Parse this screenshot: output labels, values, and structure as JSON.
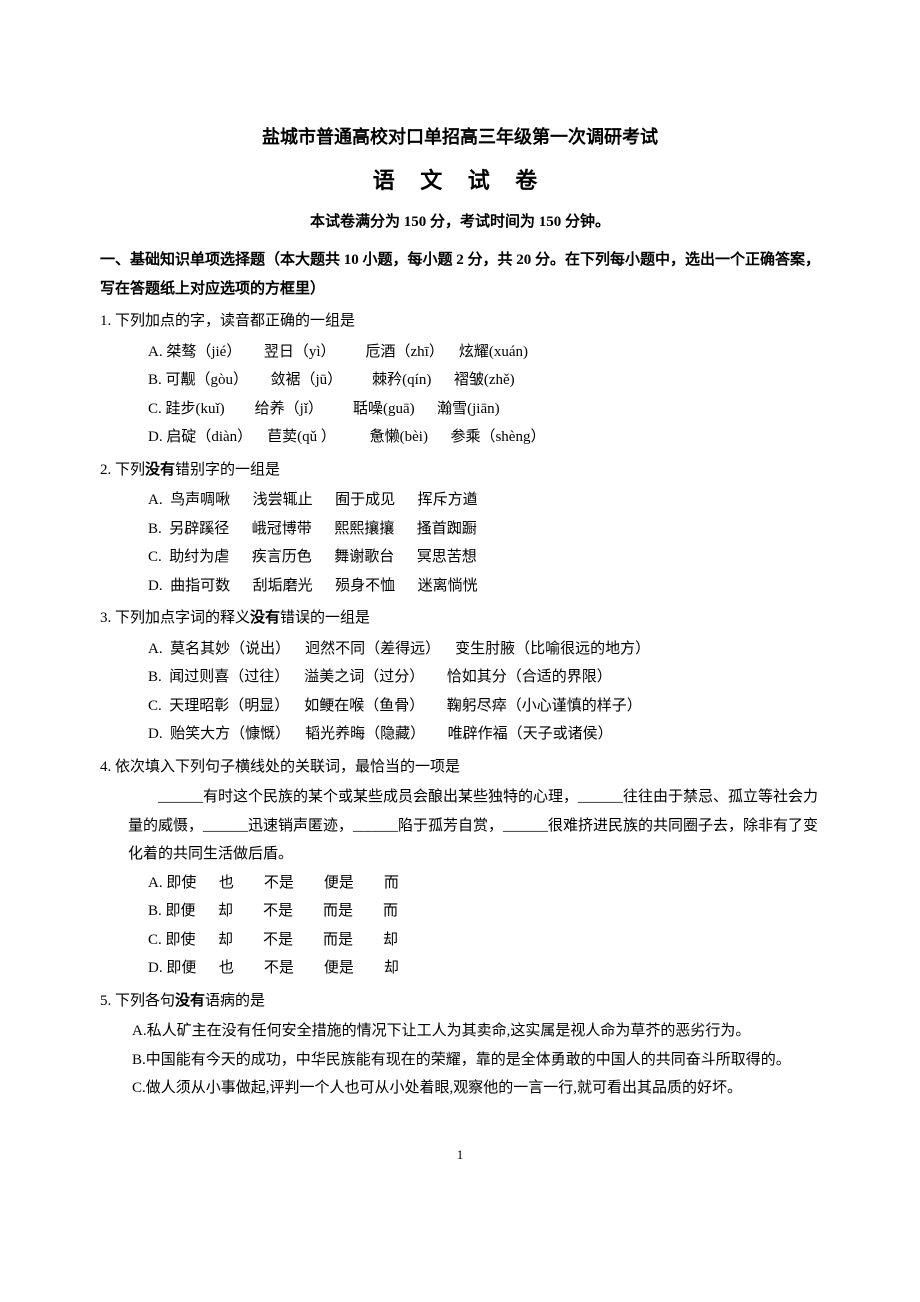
{
  "title": "盐城市普通高校对口单招高三年级第一次调研考试",
  "subtitle": "语 文 试 卷",
  "exam_info": "本试卷满分为 150 分，考试时间为 150 分钟。",
  "section1_heading": "一、基础知识单项选择题（本大题共 10 小题，每小题 2 分，共 20 分。在下列每小题中，选出一个正确答案，写在答题纸上对应选项的方框里）",
  "q1": {
    "text": "1. 下列加点的字，读音都正确的一组是",
    "a": "A. 桀骜（jié）      翌日（yì）        卮酒（zhī）    炫耀(xuán)",
    "b": "B. 可觏（gòu）      敛裾（jū）        棘矜(qín)      褶皱(zhě)",
    "c": "C. 跬步(kuǐ)        给养（jǐ）        聒噪(guā)      瀚雪(jiān)",
    "d": "D. 启碇（diàn）    苣荬(qǔ ）         惫懒(bèi)      参乘（shèng）"
  },
  "q2": {
    "text_pre": "2. 下列",
    "text_bold": "没有",
    "text_post": "错别字的一组是",
    "a": "A.  鸟声啁啾      浅尝辄止      囿于成见      挥斥方遒",
    "b": "B.  另辟蹊径      峨冠博带      熙熙攘攘      搔首踟蹰",
    "c": "C.  助纣为虐      疾言历色      舞谢歌台      冥思苦想",
    "d": "D.  曲指可数      刮垢磨光      殒身不恤      迷离惝恍"
  },
  "q3": {
    "text_pre": "3. 下列加点字词的释义",
    "text_bold": "没有",
    "text_post": "错误的一组是",
    "a": "A.  莫名其妙（说出）    迥然不同（差得远）    变生肘腋（比喻很远的地方）",
    "b": "B.  闻过则喜（过往）    溢美之词（过分）      恰如其分（合适的界限）",
    "c": "C.  天理昭彰（明显）    如鲠在喉（鱼骨）      鞠躬尽瘁（小心谨慎的样子）",
    "d": "D.  贻笑大方（慷慨）    韬光养晦（隐藏）      唯辟作福（天子或诸侯）"
  },
  "q4": {
    "text": "4. 依次填入下列句子横线处的关联词，最恰当的一项是",
    "passage": "______有时这个民族的某个或某些成员会酿出某些独特的心理，______往往由于禁忌、孤立等社会力量的威慑，______迅速销声匿迹，______陷于孤芳自赏，______很难挤进民族的共同圈子去，除非有了变化着的共同生活做后盾。",
    "a": "A. 即使      也        不是        便是        而",
    "b": "B. 即便      却        不是        而是        而",
    "c": "C. 即使      却        不是        而是        却",
    "d": "D. 即便      也        不是        便是        却"
  },
  "q5": {
    "text_pre": "5. 下列各句",
    "text_bold": "没有",
    "text_post": "语病的是",
    "a": "A.私人矿主在没有任何安全措施的情况下让工人为其卖命,这实属是视人命为草芥的恶劣行为。",
    "b": "B.中国能有今天的成功，中华民族能有现在的荣耀，靠的是全体勇敢的中国人的共同奋斗所取得的。",
    "c": "C.做人须从小事做起,评判一个人也可从小处着眼,观察他的一言一行,就可看出其品质的好坏。"
  },
  "page_number": "1"
}
